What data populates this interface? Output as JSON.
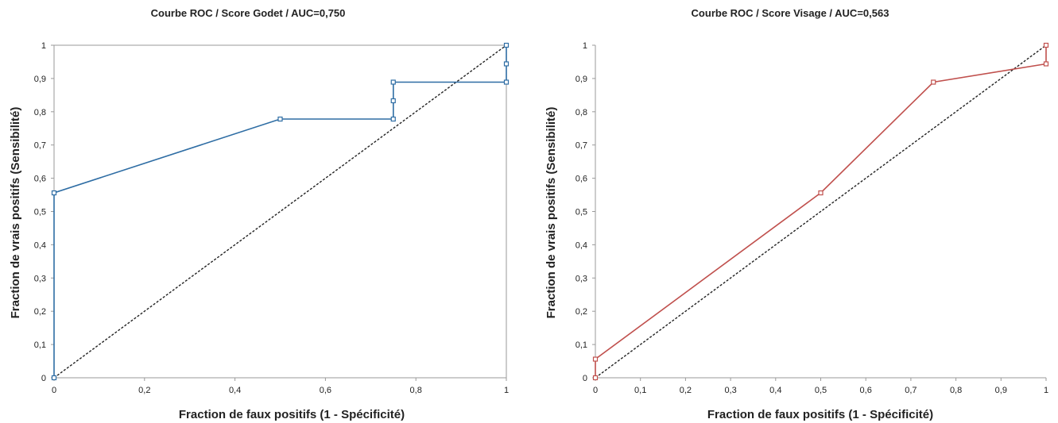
{
  "chart_data": [
    {
      "type": "line",
      "title": "Courbe  ROC / Score Godet / AUC=0,750",
      "xlabel": "Fraction de faux positifs (1 - Spécificité)",
      "ylabel": "Fraction de vrais positifs (Sensibilité)",
      "xlim": [
        0,
        1
      ],
      "ylim": [
        0,
        1
      ],
      "x_ticks": [
        "0",
        "0,2",
        "0,4",
        "0,6",
        "0,8",
        "1"
      ],
      "y_ticks": [
        "0",
        "0,1",
        "0,2",
        "0,3",
        "0,4",
        "0,5",
        "0,6",
        "0,7",
        "0,8",
        "0,9",
        "1"
      ],
      "grid": false,
      "diagonal_reference": true,
      "series": [
        {
          "color": "#2e6da4",
          "marker": "square",
          "points": [
            [
              0,
              0
            ],
            [
              0,
              0.556
            ],
            [
              0.5,
              0.778
            ],
            [
              0.75,
              0.778
            ],
            [
              0.75,
              0.833
            ],
            [
              0.75,
              0.889
            ],
            [
              1,
              0.889
            ],
            [
              1,
              0.944
            ],
            [
              1,
              1
            ]
          ]
        }
      ]
    },
    {
      "type": "line",
      "title": "Courbe  ROC / Score Visage / AUC=0,563",
      "xlabel": "Fraction de faux positifs (1 - Spécificité)",
      "ylabel": "Fraction de vrais positifs (Sensibilité)",
      "xlim": [
        0,
        1
      ],
      "ylim": [
        0,
        1
      ],
      "x_ticks": [
        "0",
        "0,1",
        "0,2",
        "0,3",
        "0,4",
        "0,5",
        "0,6",
        "0,7",
        "0,8",
        "0,9",
        "1"
      ],
      "y_ticks": [
        "0",
        "0,1",
        "0,2",
        "0,3",
        "0,4",
        "0,5",
        "0,6",
        "0,7",
        "0,8",
        "0,9",
        "1"
      ],
      "grid": false,
      "diagonal_reference": true,
      "series": [
        {
          "color": "#c0504d",
          "marker": "square",
          "points": [
            [
              0,
              0
            ],
            [
              0,
              0.056
            ],
            [
              0.5,
              0.556
            ],
            [
              0.75,
              0.889
            ],
            [
              1,
              0.944
            ],
            [
              1,
              1
            ]
          ]
        }
      ]
    }
  ]
}
